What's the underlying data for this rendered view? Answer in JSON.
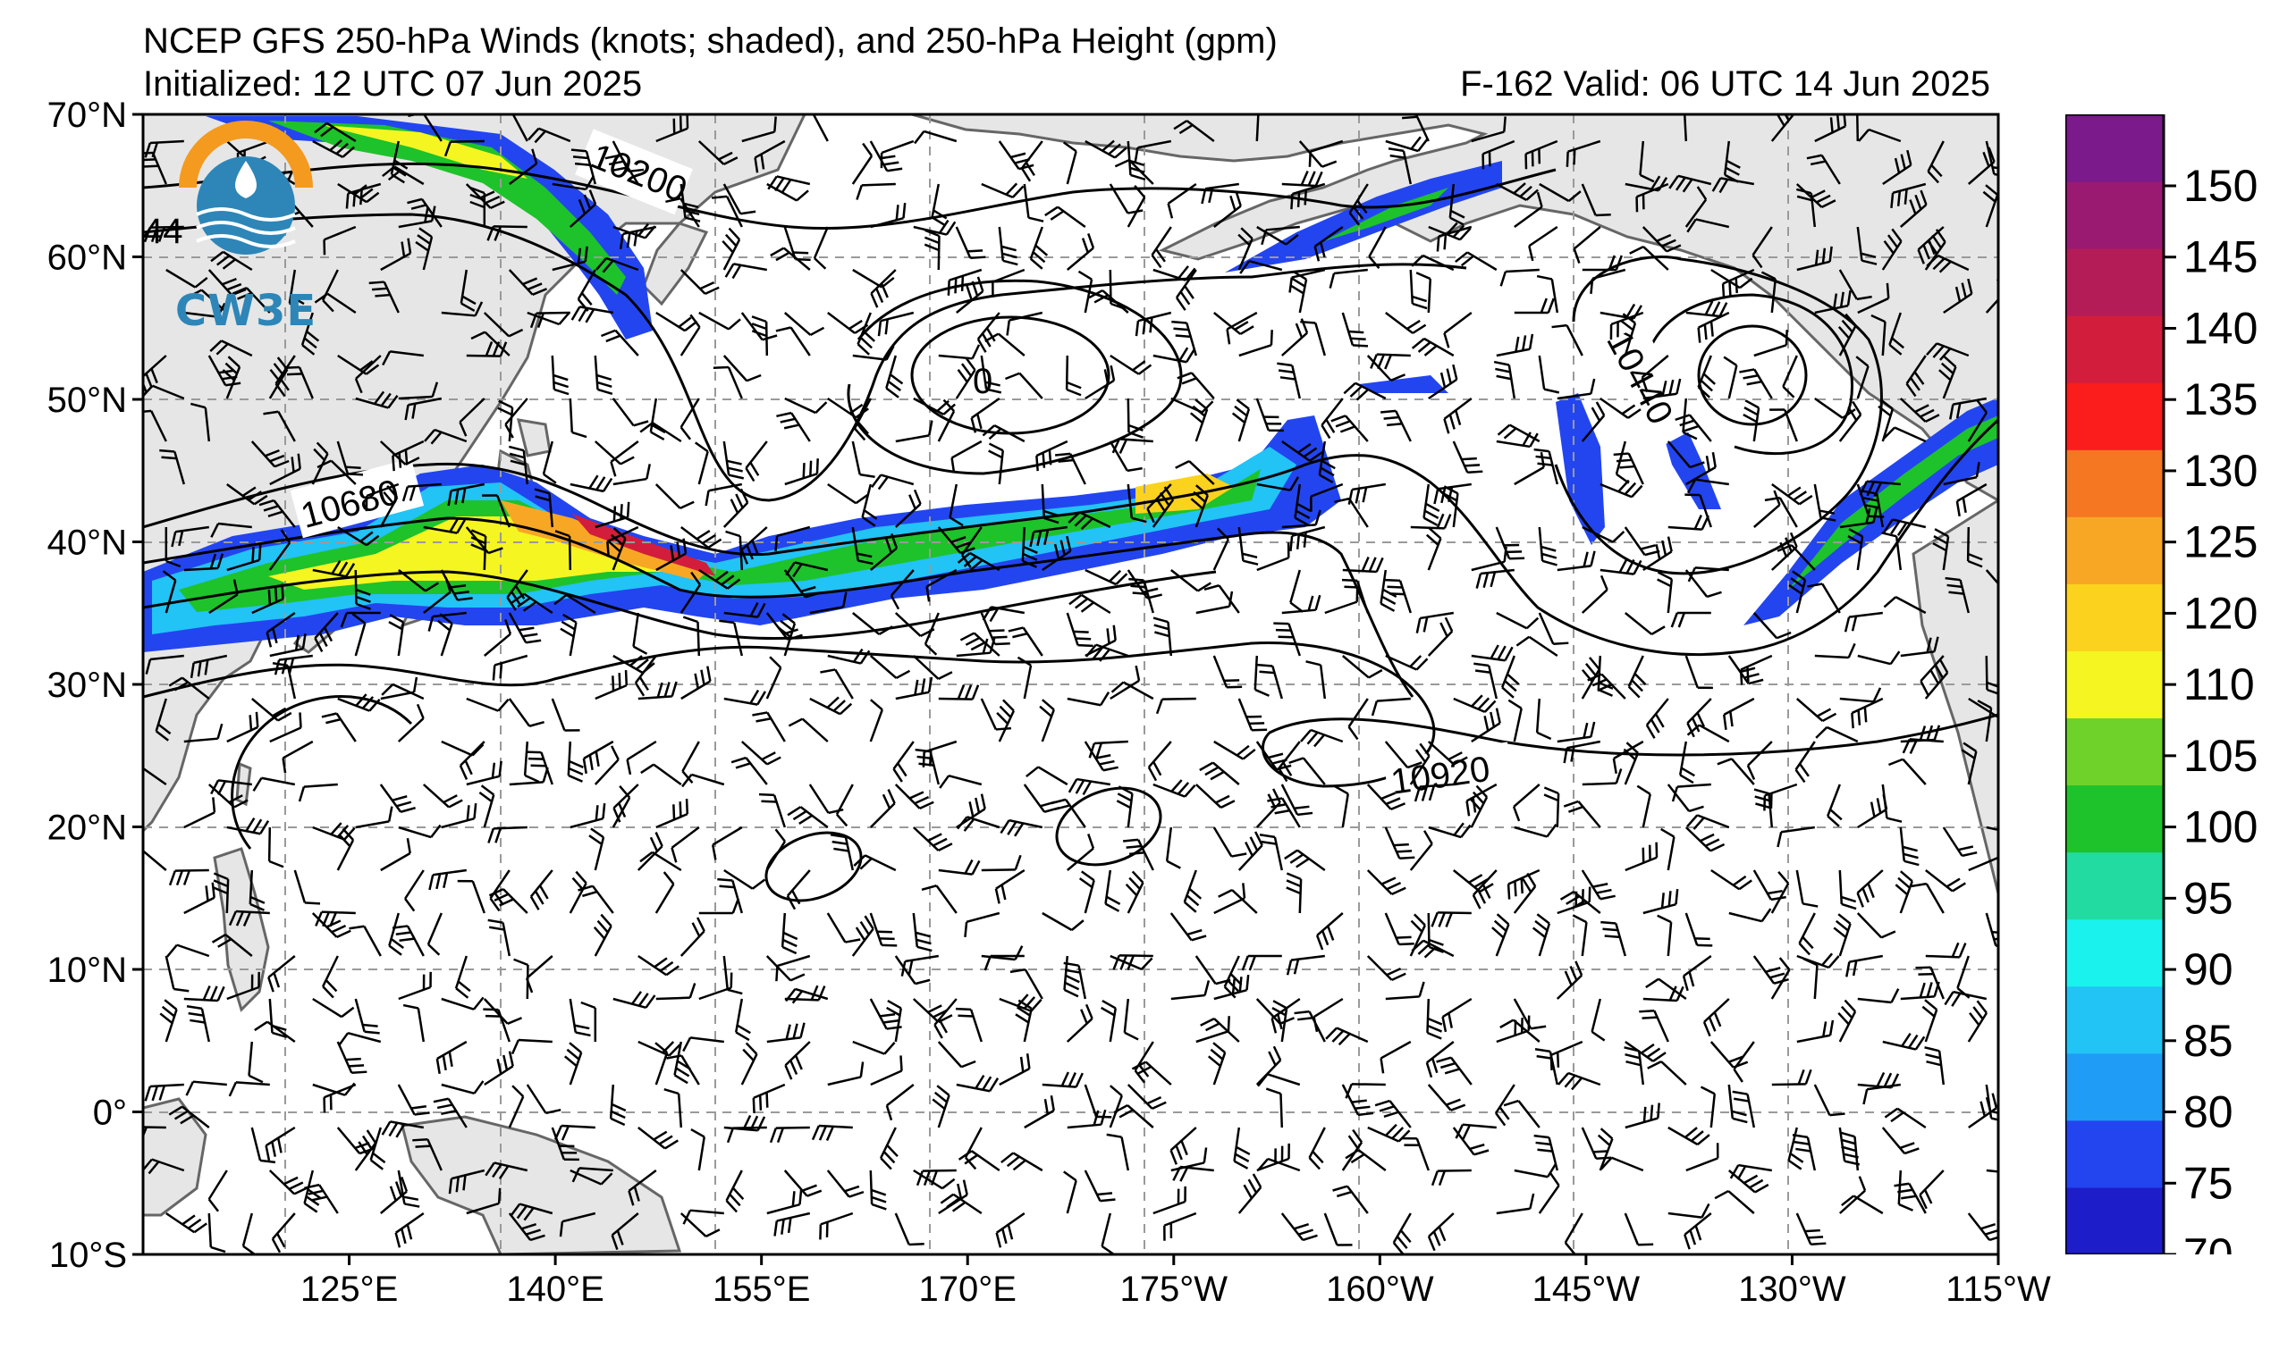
{
  "header": {
    "title": "NCEP GFS 250-hPa Winds (knots; shaded), and 250-hPa Height (gpm)",
    "initialized": "Initialized: 12 UTC 07 Jun 2025",
    "valid": "F-162  Valid: 06 UTC 14 Jun 2025"
  },
  "logo": {
    "text": "CW3E",
    "icon": "cw3e-water-drop-logo"
  },
  "map": {
    "projection": "equirectangular",
    "lon_range": [
      110,
      245
    ],
    "lat_range": [
      -10,
      70
    ],
    "land_color": "#e6e6e6",
    "ocean_color": "#ffffff",
    "coast_color": "#666666",
    "grid": true,
    "lat_labels": [
      "70°N",
      "60°N",
      "50°N",
      "40°N",
      "30°N",
      "20°N",
      "10°N",
      "0°",
      "10°S"
    ],
    "lat_values": [
      70,
      60,
      50,
      40,
      30,
      20,
      10,
      0,
      -10
    ],
    "lon_labels": [
      "125°E",
      "140°E",
      "155°E",
      "170°E",
      "175°W",
      "160°W",
      "145°W",
      "130°W",
      "115°W"
    ],
    "lon_values": [
      125,
      140,
      155,
      170,
      185,
      200,
      215,
      230,
      245
    ]
  },
  "contour_labels": [
    {
      "text": "10200"
    },
    {
      "text": "10680"
    },
    {
      "text": "10440"
    },
    {
      "text": "10920"
    },
    {
      "text": "0"
    },
    {
      "text": "44"
    }
  ],
  "colorbar": {
    "levels": [
      70,
      75,
      80,
      85,
      90,
      95,
      100,
      105,
      110,
      120,
      125,
      130,
      135,
      140,
      145,
      150
    ],
    "labels": [
      "150",
      "145",
      "140",
      "135",
      "130",
      "125",
      "120",
      "110",
      "105",
      "100",
      "95",
      "90",
      "85",
      "80",
      "75",
      "70"
    ],
    "colors": [
      "#1d1ec9",
      "#2345f0",
      "#1f9cf5",
      "#22c3f5",
      "#1af2ee",
      "#21dba1",
      "#1ec22b",
      "#6ed22a",
      "#f5f522",
      "#fbd21d",
      "#f8a725",
      "#f57722",
      "#fb1c1c",
      "#d21e3c",
      "#b41c58",
      "#9a1a72",
      "#7a1a8b"
    ]
  }
}
